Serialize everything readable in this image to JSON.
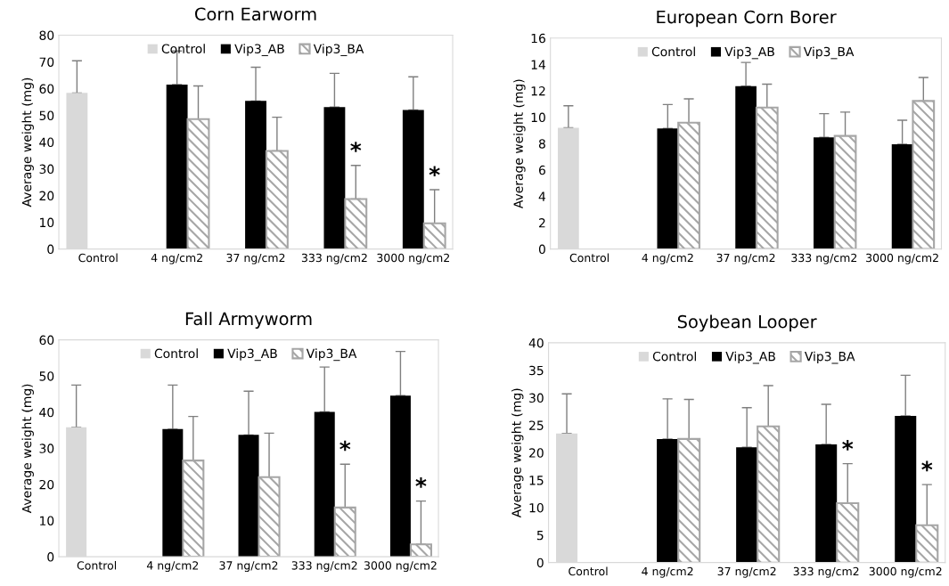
{
  "chart_data": [
    {
      "type": "bar",
      "title": "Corn Earworm",
      "ylabel": "Average weight (mg)",
      "categories": [
        "Control",
        "4 ng/cm2",
        "37 ng/cm2",
        "333 ng/cm2",
        "3000 ng/cm2"
      ],
      "ylim": [
        0,
        80
      ],
      "yticks": [
        0,
        10,
        20,
        30,
        40,
        50,
        60,
        70,
        80
      ],
      "legend": "top",
      "grid": false,
      "series": [
        {
          "name": "Control",
          "color": "#d9d9d9",
          "values": [
            58.4,
            null,
            null,
            null,
            null
          ],
          "errors": [
            [
              58.4,
              70.4
            ],
            null,
            null,
            null,
            null
          ]
        },
        {
          "name": "Vip3_AB",
          "color": "#000000",
          "values": [
            null,
            61.5,
            55.4,
            53.1,
            52.0
          ],
          "errors": [
            null,
            [
              61.5,
              74.1
            ],
            [
              55.4,
              68.0
            ],
            [
              53.1,
              65.7
            ],
            [
              52.0,
              64.4
            ]
          ]
        },
        {
          "name": "Vip3_BA",
          "color": "#a6a6a6",
          "values": [
            null,
            48.6,
            36.7,
            18.7,
            9.6
          ],
          "errors": [
            null,
            [
              48.6,
              61.0
            ],
            [
              36.7,
              49.3
            ],
            [
              18.7,
              31.3
            ],
            [
              9.6,
              22.2
            ]
          ]
        }
      ],
      "annotations": [
        "*",
        "*"
      ]
    },
    {
      "type": "bar",
      "title": "European Corn Borer",
      "ylabel": "Average weight (mg)",
      "categories": [
        "Control",
        "4 ng/cm2",
        "37 ng/cm2",
        "333 ng/cm2",
        "3000 ng/cm2"
      ],
      "ylim": [
        0,
        16
      ],
      "yticks": [
        0,
        2,
        4,
        6,
        8,
        10,
        12,
        14,
        16
      ],
      "legend": "top",
      "grid": false,
      "series": [
        {
          "name": "Control",
          "color": "#d9d9d9",
          "values": [
            9.2,
            null,
            null,
            null,
            null
          ],
          "errors": [
            [
              9.2,
              10.87
            ],
            null,
            null,
            null,
            null
          ]
        },
        {
          "name": "Vip3_AB",
          "color": "#000000",
          "values": [
            null,
            9.15,
            12.35,
            8.47,
            7.95
          ],
          "errors": [
            null,
            [
              9.15,
              10.96
            ],
            [
              12.35,
              14.15
            ],
            [
              8.47,
              10.27
            ],
            [
              7.95,
              9.77
            ]
          ]
        },
        {
          "name": "Vip3_BA",
          "color": "#a6a6a6",
          "values": [
            null,
            9.59,
            10.73,
            8.58,
            11.23
          ],
          "errors": [
            null,
            [
              9.59,
              11.39
            ],
            [
              10.73,
              12.51
            ],
            [
              8.58,
              10.39
            ],
            [
              11.23,
              13.01
            ]
          ]
        }
      ]
    },
    {
      "type": "bar",
      "title": "Fall Armyworm",
      "ylabel": "Average weight (mg)",
      "categories": [
        "Control",
        "4 ng/cm2",
        "37 ng/cm2",
        "333 ng/cm2",
        "3000 ng/cm2"
      ],
      "ylim": [
        0,
        60
      ],
      "yticks": [
        0,
        10,
        20,
        30,
        40,
        50,
        60
      ],
      "legend": "top",
      "grid": false,
      "series": [
        {
          "name": "Control",
          "color": "#d9d9d9",
          "values": [
            35.8,
            null,
            null,
            null,
            null
          ],
          "errors": [
            [
              35.8,
              47.5
            ],
            null,
            null,
            null,
            null
          ]
        },
        {
          "name": "Vip3_AB",
          "color": "#000000",
          "values": [
            null,
            35.3,
            33.7,
            40.1,
            44.6
          ],
          "errors": [
            null,
            [
              35.3,
              47.5
            ],
            [
              33.7,
              45.8
            ],
            [
              40.1,
              52.5
            ],
            [
              44.6,
              56.8
            ]
          ]
        },
        {
          "name": "Vip3_BA",
          "color": "#a6a6a6",
          "values": [
            null,
            26.6,
            22.0,
            13.6,
            3.4
          ],
          "errors": [
            null,
            [
              26.6,
              38.8
            ],
            [
              22.0,
              34.2
            ],
            [
              13.6,
              25.6
            ],
            [
              3.4,
              15.4
            ]
          ]
        }
      ],
      "annotations": [
        "*",
        "*"
      ]
    },
    {
      "type": "bar",
      "title": "Soybean Looper",
      "ylabel": "Average weight (mg)",
      "categories": [
        "Control",
        "4 ng/cm2",
        "37 ng/cm2",
        "333 ng/cm2",
        "3000 ng/cm2"
      ],
      "ylim": [
        0,
        40
      ],
      "yticks": [
        0,
        5,
        10,
        15,
        20,
        25,
        30,
        35,
        40
      ],
      "legend": "top",
      "grid": false,
      "series": [
        {
          "name": "Control",
          "color": "#d9d9d9",
          "values": [
            23.5,
            null,
            null,
            null,
            null
          ],
          "errors": [
            [
              23.5,
              30.7
            ],
            null,
            null,
            null,
            null
          ]
        },
        {
          "name": "Vip3_AB",
          "color": "#000000",
          "values": [
            null,
            22.5,
            21.0,
            21.5,
            26.7
          ],
          "errors": [
            null,
            [
              22.5,
              29.8
            ],
            [
              21.0,
              28.2
            ],
            [
              21.5,
              28.8
            ],
            [
              26.7,
              34.1
            ]
          ]
        },
        {
          "name": "Vip3_BA",
          "color": "#a6a6a6",
          "values": [
            null,
            22.5,
            24.8,
            10.8,
            6.8
          ],
          "errors": [
            null,
            [
              22.5,
              29.7
            ],
            [
              24.8,
              32.2
            ],
            [
              10.8,
              18.0
            ],
            [
              6.8,
              14.2
            ]
          ]
        }
      ],
      "annotations": [
        "*",
        "*"
      ]
    }
  ]
}
